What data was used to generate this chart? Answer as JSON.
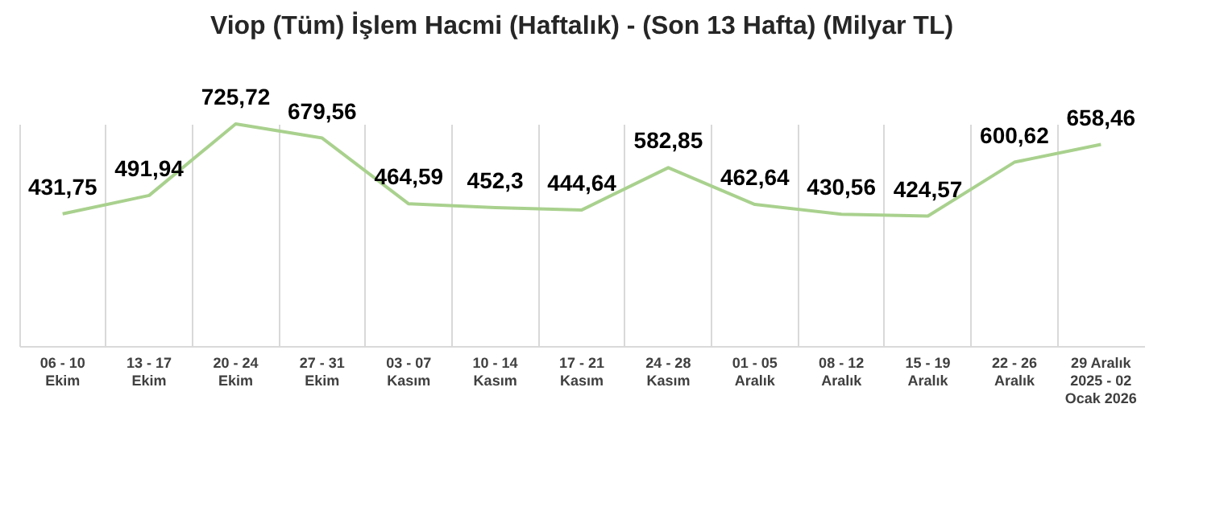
{
  "chart_data": {
    "type": "line",
    "title": "Viop (Tüm) İşlem Hacmi (Haftalık) - (Son 13 Hafta) (Milyar TL)",
    "categories": [
      "06 - 10\nEkim",
      "13 - 17\nEkim",
      "20 - 24\nEkim",
      "27 - 31\nEkim",
      "03 - 07\nKasım",
      "10 - 14\nKasım",
      "17 - 21\nKasım",
      "24 - 28\nKasım",
      "01 - 05\nAralık",
      "08 - 12\nAralık",
      "15 - 19\nAralık",
      "22 - 26\nAralık",
      "29 Aralık\n2025 - 02\nOcak 2026"
    ],
    "series": [
      {
        "color": "#a9d18e",
        "values": [
          431.75,
          491.94,
          725.72,
          679.56,
          464.59,
          452.3,
          444.64,
          582.85,
          462.64,
          430.56,
          424.57,
          600.62,
          658.46
        ],
        "value_labels": [
          "431,75",
          "491,94",
          "725,72",
          "679,56",
          "464,59",
          "452,3",
          "444,64",
          "582,85",
          "462,64",
          "430,56",
          "424,57",
          "600,62",
          "658,46"
        ]
      }
    ],
    "grid": "x",
    "tick_labels": "x",
    "marker": "none",
    "line_style": "solid"
  }
}
